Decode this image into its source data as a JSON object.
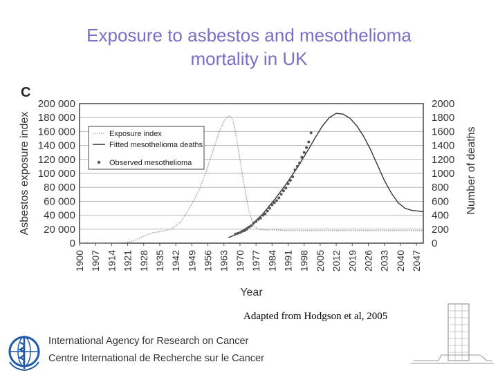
{
  "slide": {
    "title_line1": "Exposure to asbestos and mesothelioma",
    "title_line2": "mortality in UK",
    "citation": "Adapted from Hodgson et al, 2005",
    "org_name_en": "International Agency for Research on Cancer",
    "org_name_fr": "Centre International de Recherche sur le Cancer",
    "logo_icon": "who-emblem-icon",
    "building_icon": "building-icon"
  },
  "chart_data": {
    "type": "line",
    "panel_label": "C",
    "xlabel": "Year",
    "ylabel_left": "Asbestos exposure index",
    "ylabel_right": "Number of deaths",
    "categories": [
      "1900",
      "1907",
      "1914",
      "1921",
      "1928",
      "1935",
      "1942",
      "1949",
      "1956",
      "1963",
      "1970",
      "1977",
      "1984",
      "1991",
      "1998",
      "2005",
      "2012",
      "2019",
      "2026",
      "2033",
      "2040",
      "2047"
    ],
    "xlim": [
      1900,
      2050
    ],
    "ylim_left": [
      0,
      200000
    ],
    "ylim_right": [
      0,
      2000
    ],
    "yticks_left": [
      "0",
      "20 000",
      "40 000",
      "60 000",
      "80 000",
      "100 000",
      "120 000",
      "140 000",
      "160 000",
      "180 000",
      "200 000"
    ],
    "yticks_right": [
      "0",
      "200",
      "400",
      "600",
      "800",
      "1000",
      "1200",
      "1400",
      "1600",
      "1800",
      "2000"
    ],
    "grid": true,
    "legend_position": "top-left",
    "series": [
      {
        "name": "Exposure index",
        "axis": "left",
        "style": "dotted",
        "x": [
          1900,
          1915,
          1921,
          1924,
          1928,
          1932,
          1936,
          1940,
          1944,
          1948,
          1952,
          1955,
          1958,
          1961,
          1963,
          1965,
          1966,
          1967,
          1968,
          1970,
          1972,
          1974,
          1976,
          1978,
          1980,
          1985,
          1990,
          2000,
          2010,
          2020,
          2030,
          2040,
          2050
        ],
        "values": [
          0,
          0,
          1000,
          4000,
          10000,
          15000,
          17000,
          20000,
          30000,
          50000,
          75000,
          100000,
          130000,
          160000,
          175000,
          182000,
          182000,
          175000,
          160000,
          120000,
          80000,
          45000,
          25000,
          20000,
          19000,
          19000,
          18000,
          18000,
          18000,
          18000,
          18000,
          18000,
          18000
        ]
      },
      {
        "name": "Fitted mesothelioma deaths",
        "axis": "right",
        "style": "solid",
        "x": [
          1965,
          1968,
          1970,
          1975,
          1980,
          1985,
          1990,
          1995,
          2000,
          2003,
          2006,
          2009,
          2012,
          2015,
          2018,
          2021,
          2024,
          2027,
          2030,
          2033,
          2036,
          2039,
          2042,
          2045,
          2048,
          2050
        ],
        "values": [
          80,
          120,
          160,
          260,
          420,
          620,
          840,
          1080,
          1350,
          1520,
          1680,
          1800,
          1860,
          1850,
          1790,
          1680,
          1530,
          1340,
          1120,
          900,
          720,
          580,
          500,
          470,
          460,
          450
        ]
      },
      {
        "name": "Observed mesothelioma",
        "axis": "right",
        "style": "markers",
        "x": [
          1968,
          1969,
          1970,
          1971,
          1972,
          1973,
          1974,
          1975,
          1976,
          1977,
          1978,
          1979,
          1980,
          1981,
          1982,
          1983,
          1984,
          1985,
          1986,
          1987,
          1988,
          1989,
          1990,
          1991,
          1992,
          1993,
          1994,
          1995,
          1996,
          1997,
          1998,
          1999,
          2000,
          2001
        ],
        "values": [
          130,
          140,
          150,
          170,
          180,
          200,
          230,
          250,
          290,
          310,
          340,
          360,
          400,
          420,
          460,
          500,
          550,
          580,
          610,
          650,
          700,
          750,
          790,
          850,
          900,
          950,
          1050,
          1100,
          1150,
          1230,
          1300,
          1370,
          1450,
          1580
        ]
      }
    ]
  }
}
